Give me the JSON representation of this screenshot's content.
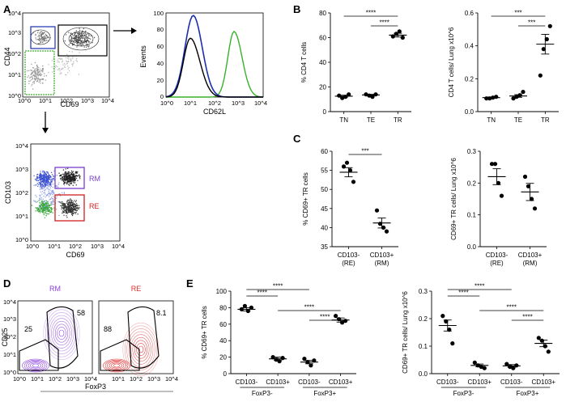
{
  "panels": {
    "A": "A",
    "B": "B",
    "C": "C",
    "D": "D",
    "E": "E"
  },
  "flow": {
    "contour_main": {
      "xlabel": "CD69",
      "ylabel": "CD44",
      "xticks": [
        "10^0",
        "10^1",
        "10^2",
        "10^3",
        "10^4"
      ],
      "yticks": [
        "10^0",
        "10^1",
        "10^2",
        "10^3",
        "10^4"
      ]
    },
    "histogram": {
      "xlabel": "CD62L",
      "ylabel": "Events",
      "xticks": [
        "10^0",
        "10^1",
        "10^2",
        "10^3",
        "10^4"
      ],
      "yticks": [
        "0",
        "20",
        "40",
        "60",
        "80",
        "100"
      ],
      "colors": {
        "tn": "#38b02c",
        "te": "#1a2fb0",
        "tr": "#000000"
      }
    },
    "scatter_rm_re": {
      "xlabel": "CD69",
      "ylabel": "CD103",
      "xticks": [
        "10^0",
        "10^1",
        "10^2",
        "10^3",
        "10^4"
      ],
      "yticks": [
        "10^0",
        "10^1",
        "10^2",
        "10^3",
        "10^4"
      ],
      "gate_rm": "RM",
      "gate_re": "RE",
      "rm_color": "#7b3fd0",
      "re_color": "#d02020"
    },
    "panel_d": {
      "rm_title": "RM",
      "re_title": "RE",
      "rm_numbers": [
        "25",
        "58"
      ],
      "re_numbers": [
        "88",
        "8.1"
      ],
      "xlabel": "FoxP3",
      "ylabel": "CD25",
      "xticks": [
        "10^0",
        "10^1",
        "10^2",
        "10^3",
        "10^4"
      ],
      "yticks": [
        "10^0",
        "10^1",
        "10^2",
        "10^3",
        "10^4"
      ],
      "rm_color": "#8a3fe0",
      "re_color": "#e03030"
    }
  },
  "chart_data": [
    {
      "id": "B1",
      "type": "scatter",
      "ylabel": "% CD4 T cells",
      "categories": [
        "TN",
        "TE",
        "TR"
      ],
      "ylim": [
        0,
        80
      ],
      "yticks": [
        0,
        20,
        40,
        60,
        80
      ],
      "points": [
        [
          13,
          11,
          12,
          14
        ],
        [
          14,
          13,
          12,
          14
        ],
        [
          61,
          63,
          65,
          60
        ]
      ],
      "means": [
        12.5,
        13.5,
        62
      ],
      "sems": [
        0.8,
        0.5,
        1.5
      ],
      "sig": [
        {
          "from": 0,
          "to": 2,
          "label": "****"
        },
        {
          "from": 1,
          "to": 2,
          "label": "****"
        }
      ]
    },
    {
      "id": "B2",
      "type": "scatter",
      "ylabel": "CD4 T cells/ Lung x10^6",
      "categories": [
        "TN",
        "TE",
        "TR"
      ],
      "ylim": [
        0,
        0.6
      ],
      "yticks": [
        0.0,
        0.2,
        0.4,
        0.6
      ],
      "points": [
        [
          0.08,
          0.08,
          0.085,
          0.09
        ],
        [
          0.08,
          0.09,
          0.1,
          0.12
        ],
        [
          0.22,
          0.38,
          0.44,
          0.52
        ]
      ],
      "means": [
        0.085,
        0.095,
        0.41
      ],
      "sems": [
        0.004,
        0.008,
        0.06
      ],
      "sig": [
        {
          "from": 0,
          "to": 2,
          "label": "***"
        },
        {
          "from": 1,
          "to": 2,
          "label": "***"
        }
      ]
    },
    {
      "id": "C1",
      "type": "scatter",
      "ylabel": "% CD69+ TR cells",
      "categories": [
        "CD103- (RE)",
        "CD103+ (RM)"
      ],
      "ylim": [
        35,
        60
      ],
      "yticks": [
        35,
        40,
        45,
        50,
        55,
        60
      ],
      "points": [
        [
          56,
          57,
          55,
          52
        ],
        [
          44.5,
          41,
          40,
          39
        ]
      ],
      "means": [
        54.5,
        41.2
      ],
      "sems": [
        1.2,
        1.3
      ],
      "sig": [
        {
          "from": 0,
          "to": 1,
          "label": "***"
        }
      ]
    },
    {
      "id": "C2",
      "type": "scatter",
      "ylabel": "CD69+ TR cells/ Lung x10^6",
      "categories": [
        "CD103- (RE)",
        "CD103+ (RM)"
      ],
      "ylim": [
        0.0,
        0.3
      ],
      "yticks": [
        0.0,
        0.1,
        0.2,
        0.3
      ],
      "points": [
        [
          0.26,
          0.26,
          0.2,
          0.16
        ],
        [
          0.22,
          0.19,
          0.15,
          0.12
        ]
      ],
      "means": [
        0.22,
        0.172
      ],
      "sems": [
        0.025,
        0.027
      ],
      "sig": []
    },
    {
      "id": "E1",
      "type": "scatter",
      "ylabel": "% CD69+ TR cells",
      "categories": [
        "CD103-",
        "CD103+",
        "CD103-",
        "CD103+"
      ],
      "groups": [
        "FoxP3-",
        "FoxP3+"
      ],
      "ylim": [
        0,
        100
      ],
      "yticks": [
        0,
        20,
        40,
        60,
        80,
        100
      ],
      "points": [
        [
          78,
          82,
          76,
          80
        ],
        [
          20,
          17,
          15,
          19
        ],
        [
          18,
          14,
          10,
          16
        ],
        [
          70,
          66,
          62,
          64
        ]
      ],
      "means": [
        78,
        18,
        14,
        65
      ],
      "sems": [
        2,
        2,
        2,
        2.5
      ],
      "sig": [
        {
          "from": 0,
          "to": 1,
          "label": "****"
        },
        {
          "from": 0,
          "to": 2,
          "label": "****"
        },
        {
          "from": 1,
          "to": 3,
          "label": "****"
        },
        {
          "from": 2,
          "to": 3,
          "label": "****"
        }
      ]
    },
    {
      "id": "E2",
      "type": "scatter",
      "ylabel": "CD69+ TR cells/ Lung x10^6",
      "categories": [
        "CD103-",
        "CD103+",
        "CD103-",
        "CD103+"
      ],
      "groups": [
        "FoxP3-",
        "FoxP3+"
      ],
      "ylim": [
        0,
        0.3
      ],
      "yticks": [
        0.0,
        0.1,
        0.2,
        0.3
      ],
      "points": [
        [
          0.21,
          0.19,
          0.16,
          0.11
        ],
        [
          0.04,
          0.03,
          0.025,
          0.02
        ],
        [
          0.035,
          0.025,
          0.02,
          0.03
        ],
        [
          0.13,
          0.12,
          0.1,
          0.08
        ]
      ],
      "means": [
        0.175,
        0.03,
        0.028,
        0.11
      ],
      "sems": [
        0.02,
        0.005,
        0.005,
        0.012
      ],
      "sig": [
        {
          "from": 0,
          "to": 1,
          "label": "****"
        },
        {
          "from": 0,
          "to": 2,
          "label": "****"
        },
        {
          "from": 1,
          "to": 3,
          "label": "****"
        },
        {
          "from": 2,
          "to": 3,
          "label": "****"
        }
      ]
    }
  ]
}
